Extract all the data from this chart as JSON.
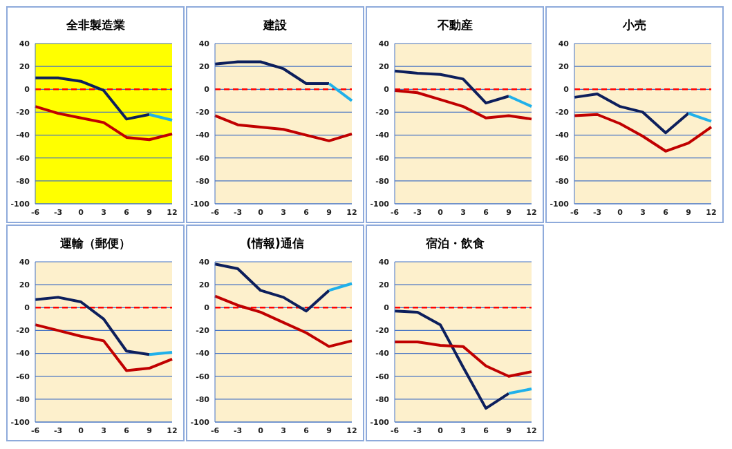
{
  "chart_data": [
    {
      "type": "line",
      "title": "全非製造業",
      "categories": [
        "-6",
        "-3",
        "0",
        "3",
        "6",
        "9",
        "12"
      ],
      "series": [
        {
          "color": "#0d1f5c",
          "values": [
            10,
            10,
            7,
            -1,
            -26,
            -22,
            null
          ]
        },
        {
          "color": "#1fb0ea",
          "values": [
            null,
            null,
            null,
            null,
            null,
            -22,
            -27
          ]
        },
        {
          "color": "#c00000",
          "values": [
            -15,
            -21,
            -25,
            -29,
            -42,
            -44,
            -39
          ]
        }
      ],
      "ylim": [
        -100,
        40
      ],
      "yticks": [
        -100,
        -80,
        -60,
        -40,
        -20,
        0,
        20,
        40
      ],
      "grid": "y",
      "legend": false,
      "marker": "none",
      "ref_lines": [
        {
          "axis": "y",
          "value": 0,
          "color": "#ff0000",
          "line_style": "dashed"
        }
      ]
    },
    {
      "type": "line",
      "title": "建設",
      "categories": [
        "-6",
        "-3",
        "0",
        "3",
        "6",
        "9",
        "12"
      ],
      "series": [
        {
          "color": "#0d1f5c",
          "values": [
            22,
            24,
            24,
            18,
            5,
            5,
            null
          ]
        },
        {
          "color": "#1fb0ea",
          "values": [
            null,
            null,
            null,
            null,
            null,
            5,
            -10
          ]
        },
        {
          "color": "#c00000",
          "values": [
            -23,
            -31,
            -33,
            -35,
            -40,
            -45,
            -39
          ]
        }
      ],
      "ylim": [
        -100,
        40
      ],
      "yticks": [
        -100,
        -80,
        -60,
        -40,
        -20,
        0,
        20,
        40
      ],
      "grid": "y",
      "legend": false,
      "marker": "none",
      "ref_lines": [
        {
          "axis": "y",
          "value": 0,
          "color": "#ff0000",
          "line_style": "dashed"
        }
      ]
    },
    {
      "type": "line",
      "title": "不動産",
      "categories": [
        "-6",
        "-3",
        "0",
        "3",
        "6",
        "9",
        "12"
      ],
      "series": [
        {
          "color": "#0d1f5c",
          "values": [
            16,
            14,
            13,
            9,
            -12,
            -6,
            null
          ]
        },
        {
          "color": "#1fb0ea",
          "values": [
            null,
            null,
            null,
            null,
            null,
            -6,
            -15
          ]
        },
        {
          "color": "#c00000",
          "values": [
            -1,
            -3,
            -9,
            -15,
            -25,
            -23,
            -26
          ]
        }
      ],
      "ylim": [
        -100,
        40
      ],
      "yticks": [
        -100,
        -80,
        -60,
        -40,
        -20,
        0,
        20,
        40
      ],
      "grid": "y",
      "legend": false,
      "marker": "none",
      "ref_lines": [
        {
          "axis": "y",
          "value": 0,
          "color": "#ff0000",
          "line_style": "dashed"
        }
      ]
    },
    {
      "type": "line",
      "title": "小売",
      "categories": [
        "-6",
        "-3",
        "0",
        "3",
        "6",
        "9",
        "12"
      ],
      "series": [
        {
          "color": "#0d1f5c",
          "values": [
            -7,
            -4,
            -15,
            -20,
            -38,
            -21,
            null
          ]
        },
        {
          "color": "#1fb0ea",
          "values": [
            null,
            null,
            null,
            null,
            null,
            -21,
            -28
          ]
        },
        {
          "color": "#c00000",
          "values": [
            -23,
            -22,
            -30,
            -41,
            -54,
            -47,
            -33
          ]
        }
      ],
      "ylim": [
        -100,
        40
      ],
      "yticks": [
        -100,
        -80,
        -60,
        -40,
        -20,
        0,
        20,
        40
      ],
      "grid": "y",
      "legend": false,
      "marker": "none",
      "ref_lines": [
        {
          "axis": "y",
          "value": 0,
          "color": "#ff0000",
          "line_style": "dashed"
        }
      ]
    },
    {
      "type": "line",
      "title": "運輸（郵便）",
      "categories": [
        "-6",
        "-3",
        "0",
        "3",
        "6",
        "9",
        "12"
      ],
      "series": [
        {
          "color": "#0d1f5c",
          "values": [
            7,
            9,
            5,
            -10,
            -38,
            -41,
            null
          ]
        },
        {
          "color": "#1fb0ea",
          "values": [
            null,
            null,
            null,
            null,
            null,
            -41,
            -39
          ]
        },
        {
          "color": "#c00000",
          "values": [
            -15,
            -20,
            -25,
            -29,
            -55,
            -53,
            -45
          ]
        }
      ],
      "ylim": [
        -100,
        40
      ],
      "yticks": [
        -100,
        -80,
        -60,
        -40,
        -20,
        0,
        20,
        40
      ],
      "grid": "y",
      "legend": false,
      "marker": "none",
      "ref_lines": [
        {
          "axis": "y",
          "value": 0,
          "color": "#ff0000",
          "line_style": "dashed"
        }
      ]
    },
    {
      "type": "line",
      "title": "(情報)通信",
      "categories": [
        "-6",
        "-3",
        "0",
        "3",
        "6",
        "9",
        "12"
      ],
      "series": [
        {
          "color": "#0d1f5c",
          "values": [
            38,
            34,
            15,
            9,
            -3,
            15,
            null
          ]
        },
        {
          "color": "#1fb0ea",
          "values": [
            null,
            null,
            null,
            null,
            null,
            15,
            21
          ]
        },
        {
          "color": "#c00000",
          "values": [
            10,
            2,
            -4,
            -13,
            -22,
            -34,
            -29
          ]
        }
      ],
      "ylim": [
        -100,
        40
      ],
      "yticks": [
        -100,
        -80,
        -60,
        -40,
        -20,
        0,
        20,
        40
      ],
      "grid": "y",
      "legend": false,
      "marker": "none",
      "ref_lines": [
        {
          "axis": "y",
          "value": 0,
          "color": "#ff0000",
          "line_style": "dashed"
        }
      ]
    },
    {
      "type": "line",
      "title": "宿泊・飲食",
      "categories": [
        "-6",
        "-3",
        "0",
        "3",
        "6",
        "9",
        "12"
      ],
      "series": [
        {
          "color": "#0d1f5c",
          "values": [
            -3,
            -4,
            -15,
            -52,
            -88,
            -75,
            null
          ]
        },
        {
          "color": "#1fb0ea",
          "values": [
            null,
            null,
            null,
            null,
            null,
            -75,
            -71
          ]
        },
        {
          "color": "#c00000",
          "values": [
            -30,
            -30,
            -33,
            -34,
            -51,
            -60,
            -56
          ]
        }
      ],
      "ylim": [
        -100,
        40
      ],
      "yticks": [
        -100,
        -80,
        -60,
        -40,
        -20,
        0,
        20,
        40
      ],
      "grid": "y",
      "legend": false,
      "marker": "none",
      "ref_lines": [
        {
          "axis": "y",
          "value": 0,
          "color": "#ff0000",
          "line_style": "dashed"
        }
      ]
    }
  ]
}
